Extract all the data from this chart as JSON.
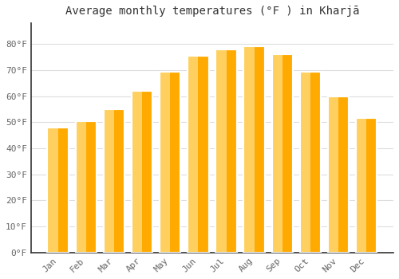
{
  "title": "Average monthly temperatures (°F ) in Kharjā",
  "months": [
    "Jan",
    "Feb",
    "Mar",
    "Apr",
    "May",
    "Jun",
    "Jul",
    "Aug",
    "Sep",
    "Oct",
    "Nov",
    "Dec"
  ],
  "values": [
    48,
    50.5,
    55,
    62,
    69.5,
    75.5,
    78,
    79,
    76,
    69.5,
    60,
    51.5
  ],
  "bar_color_main": "#FFAA00",
  "bar_color_light": "#FFD060",
  "bar_edge_color": "#FFFFFF",
  "background_color": "#FFFFFF",
  "grid_color": "#DDDDDD",
  "title_fontsize": 10,
  "tick_fontsize": 8,
  "ylim": [
    0,
    88
  ],
  "yticks": [
    0,
    10,
    20,
    30,
    40,
    50,
    60,
    70,
    80
  ],
  "ytick_labels": [
    "0°F",
    "10°F",
    "20°F",
    "30°F",
    "40°F",
    "50°F",
    "60°F",
    "70°F",
    "80°F"
  ],
  "tick_color": "#666666",
  "spine_color": "#333333"
}
